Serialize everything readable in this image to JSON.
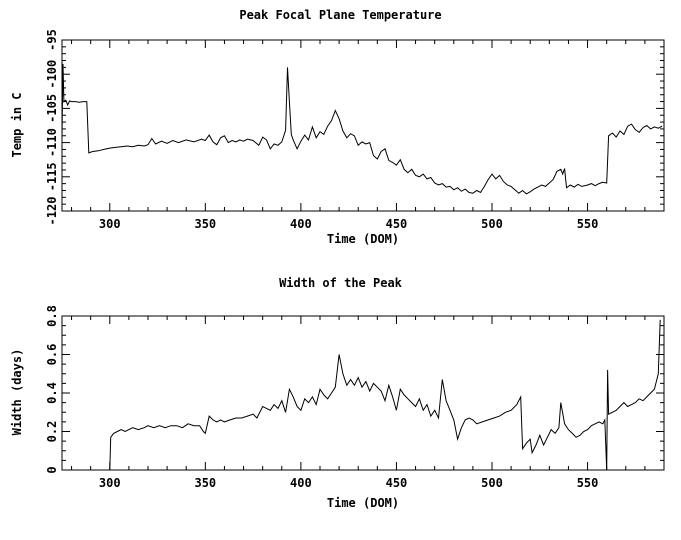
{
  "page": {
    "background": "#ffffff",
    "line_color": "#000000"
  },
  "chart_data": [
    {
      "type": "line",
      "title": "Peak Focal Plane Temperature",
      "xlabel": "Time (DOM)",
      "ylabel": "Temp in C",
      "xlim": [
        275,
        590
      ],
      "ylim": [
        -120,
        -95
      ],
      "xticks": [
        300,
        350,
        400,
        450,
        500,
        550
      ],
      "xtick_labels": [
        "300",
        "350",
        "400",
        "450",
        "500",
        "550"
      ],
      "xminor": 10,
      "yticks": [
        -120,
        -115,
        -110,
        -105,
        -100,
        -95
      ],
      "ytick_labels": [
        "-120",
        "-115",
        "-110",
        "-105",
        "-100",
        "-95"
      ],
      "yminor": 1,
      "grid": false,
      "legend": false,
      "x": [
        275,
        275.5,
        276,
        277,
        278,
        279,
        280,
        282,
        284,
        286,
        288,
        289,
        291,
        294,
        297,
        300,
        303,
        306,
        309,
        312,
        315,
        318,
        320,
        322,
        324,
        327,
        330,
        333,
        336,
        340,
        344,
        348,
        350,
        352,
        354,
        356,
        358,
        360,
        362,
        364,
        366,
        368,
        370,
        372,
        375,
        378,
        380,
        382,
        384,
        386,
        388,
        390,
        392,
        393,
        394,
        395,
        396,
        398,
        400,
        402,
        404,
        406,
        408,
        410,
        412,
        414,
        416,
        418,
        420,
        422,
        424,
        426,
        428,
        430,
        432,
        434,
        436,
        438,
        440,
        442,
        444,
        446,
        448,
        450,
        452,
        454,
        456,
        458,
        460,
        462,
        464,
        466,
        468,
        470,
        472,
        474,
        476,
        478,
        480,
        482,
        484,
        486,
        488,
        490,
        492,
        494,
        496,
        498,
        500,
        502,
        504,
        506,
        508,
        510,
        512,
        514,
        516,
        518,
        520,
        522,
        524,
        526,
        528,
        530,
        532,
        534,
        536,
        537,
        538,
        539,
        541,
        543,
        545,
        547,
        550,
        552,
        554,
        556,
        558,
        560,
        561,
        563,
        565,
        567,
        569,
        571,
        573,
        575,
        577,
        579,
        581,
        583,
        585,
        587,
        589
      ],
      "y": [
        -109,
        -98.5,
        -104,
        -103.8,
        -104.5,
        -103.9,
        -104,
        -104,
        -104.1,
        -104,
        -104,
        -111.5,
        -111.3,
        -111.2,
        -111,
        -110.8,
        -110.7,
        -110.6,
        -110.5,
        -110.6,
        -110.4,
        -110.5,
        -110.3,
        -109.4,
        -110.2,
        -109.8,
        -110.1,
        -109.7,
        -110,
        -109.6,
        -109.9,
        -109.5,
        -109.7,
        -108.9,
        -109.9,
        -110.3,
        -109.3,
        -109,
        -110,
        -109.7,
        -109.9,
        -109.6,
        -109.8,
        -109.5,
        -109.7,
        -110.4,
        -109.2,
        -109.6,
        -110.9,
        -110.2,
        -110.4,
        -109.9,
        -108.2,
        -99,
        -104,
        -108.8,
        -109.6,
        -110.9,
        -109.8,
        -108.9,
        -109.6,
        -107.7,
        -109.3,
        -108.4,
        -108.8,
        -107.6,
        -106.8,
        -105.3,
        -106.5,
        -108.3,
        -109.3,
        -108.7,
        -109,
        -110.4,
        -109.9,
        -110.2,
        -110,
        -111.9,
        -112.4,
        -111.3,
        -110.9,
        -112.6,
        -112.9,
        -113.3,
        -112.5,
        -113.9,
        -114.4,
        -113.9,
        -114.8,
        -115,
        -114.6,
        -115.3,
        -115.1,
        -115.9,
        -116.2,
        -116,
        -116.5,
        -116.4,
        -116.9,
        -116.6,
        -117.1,
        -116.8,
        -117.3,
        -117.4,
        -117,
        -117.3,
        -116.4,
        -115.4,
        -114.6,
        -115.3,
        -114.8,
        -115.7,
        -116.2,
        -116.4,
        -116.9,
        -117.4,
        -117,
        -117.5,
        -117.2,
        -116.8,
        -116.5,
        -116.2,
        -116.4,
        -115.9,
        -115.4,
        -114.2,
        -113.9,
        -114.6,
        -113.8,
        -116.6,
        -116.2,
        -116.5,
        -116.1,
        -116.4,
        -116.2,
        -116,
        -116.3,
        -116,
        -115.8,
        -115.9,
        -109,
        -108.6,
        -109.2,
        -108.3,
        -108.8,
        -107.6,
        -107.3,
        -108.1,
        -108.5,
        -107.8,
        -107.5,
        -108,
        -107.7,
        -107.9,
        -107.6
      ]
    },
    {
      "type": "line",
      "title": "Width of the Peak",
      "xlabel": "Time (DOM)",
      "ylabel": "Width (days)",
      "xlim": [
        275,
        590
      ],
      "ylim": [
        0,
        0.8
      ],
      "xticks": [
        300,
        350,
        400,
        450,
        500,
        550
      ],
      "xtick_labels": [
        "300",
        "350",
        "400",
        "450",
        "500",
        "550"
      ],
      "xminor": 10,
      "yticks": [
        0,
        0.2,
        0.4,
        0.6,
        0.8
      ],
      "ytick_labels": [
        "0",
        "0.2",
        "0.4",
        "0.6",
        "0.8"
      ],
      "yminor": 0.05,
      "grid": false,
      "legend": false,
      "x": [
        300,
        300.5,
        302,
        304,
        306,
        308,
        310,
        312,
        315,
        318,
        320,
        323,
        326,
        329,
        332,
        335,
        338,
        341,
        344,
        347,
        349,
        350,
        352,
        354,
        356,
        358,
        360,
        363,
        366,
        369,
        372,
        375,
        377,
        380,
        382,
        384,
        386,
        388,
        390,
        392,
        394,
        396,
        398,
        400,
        402,
        404,
        406,
        408,
        410,
        412,
        414,
        416,
        418,
        420,
        422,
        424,
        426,
        428,
        430,
        432,
        434,
        436,
        438,
        440,
        442,
        444,
        446,
        448,
        450,
        452,
        454,
        456,
        458,
        460,
        462,
        464,
        466,
        468,
        470,
        472,
        474,
        476,
        478,
        480,
        482,
        484,
        486,
        488,
        490,
        492,
        495,
        498,
        501,
        504,
        507,
        510,
        513,
        515,
        516,
        518,
        520,
        521,
        523,
        525,
        527,
        529,
        531,
        533,
        535,
        536,
        538,
        540,
        542,
        544,
        546,
        548,
        550,
        552,
        554,
        556,
        558,
        559,
        560,
        560.5,
        561,
        563,
        565,
        567,
        569,
        571,
        573,
        575,
        577,
        579,
        581,
        583,
        585,
        587,
        588
      ],
      "y": [
        0,
        0.17,
        0.19,
        0.2,
        0.21,
        0.2,
        0.21,
        0.22,
        0.21,
        0.22,
        0.23,
        0.22,
        0.23,
        0.22,
        0.23,
        0.23,
        0.22,
        0.24,
        0.23,
        0.23,
        0.2,
        0.19,
        0.28,
        0.26,
        0.25,
        0.26,
        0.25,
        0.26,
        0.27,
        0.27,
        0.28,
        0.29,
        0.27,
        0.33,
        0.32,
        0.31,
        0.34,
        0.32,
        0.36,
        0.3,
        0.42,
        0.38,
        0.33,
        0.31,
        0.37,
        0.35,
        0.38,
        0.34,
        0.42,
        0.39,
        0.37,
        0.4,
        0.43,
        0.6,
        0.5,
        0.44,
        0.47,
        0.44,
        0.48,
        0.43,
        0.46,
        0.41,
        0.45,
        0.43,
        0.41,
        0.36,
        0.44,
        0.38,
        0.31,
        0.42,
        0.39,
        0.37,
        0.35,
        0.33,
        0.37,
        0.31,
        0.34,
        0.28,
        0.31,
        0.27,
        0.47,
        0.36,
        0.31,
        0.26,
        0.16,
        0.22,
        0.26,
        0.27,
        0.26,
        0.24,
        0.25,
        0.26,
        0.27,
        0.28,
        0.3,
        0.31,
        0.34,
        0.38,
        0.11,
        0.14,
        0.16,
        0.09,
        0.13,
        0.18,
        0.13,
        0.17,
        0.21,
        0.19,
        0.22,
        0.35,
        0.24,
        0.21,
        0.19,
        0.17,
        0.18,
        0.2,
        0.21,
        0.23,
        0.24,
        0.25,
        0.24,
        0.26,
        0,
        0.52,
        0.29,
        0.3,
        0.31,
        0.33,
        0.35,
        0.33,
        0.34,
        0.35,
        0.37,
        0.36,
        0.38,
        0.4,
        0.42,
        0.5,
        0.78
      ]
    }
  ]
}
